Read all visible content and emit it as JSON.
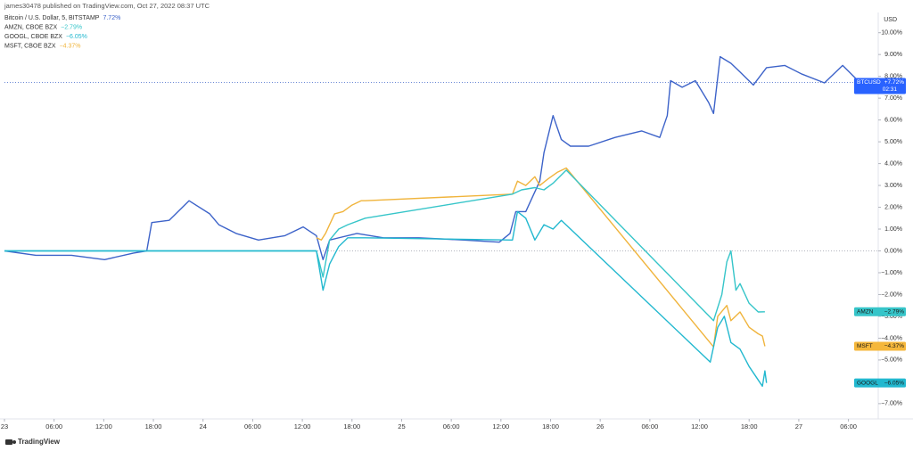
{
  "header": "james30478 published on TradingView.com, Oct 27, 2022 08:37 UTC",
  "footer": "TradingView",
  "chart_data": {
    "type": "line",
    "y_unit": "USD",
    "xlim": [
      0,
      105.6
    ],
    "ylim": [
      -7.7,
      10.6
    ],
    "xticks": [
      {
        "value": 0,
        "label": "23"
      },
      {
        "value": 6,
        "label": "06:00"
      },
      {
        "value": 12,
        "label": "12:00"
      },
      {
        "value": 18,
        "label": "18:00"
      },
      {
        "value": 24,
        "label": "24"
      },
      {
        "value": 30,
        "label": "06:00"
      },
      {
        "value": 36,
        "label": "12:00"
      },
      {
        "value": 42,
        "label": "18:00"
      },
      {
        "value": 48,
        "label": "25"
      },
      {
        "value": 54,
        "label": "06:00"
      },
      {
        "value": 60,
        "label": "12:00"
      },
      {
        "value": 66,
        "label": "18:00"
      },
      {
        "value": 72,
        "label": "26"
      },
      {
        "value": 78,
        "label": "06:00"
      },
      {
        "value": 84,
        "label": "12:00"
      },
      {
        "value": 90,
        "label": "18:00"
      },
      {
        "value": 96,
        "label": "27"
      },
      {
        "value": 102,
        "label": "06:00"
      }
    ],
    "yticks": [
      {
        "value": 10,
        "label": "10.00%"
      },
      {
        "value": 9,
        "label": "9.00%"
      },
      {
        "value": 8,
        "label": "8.00%"
      },
      {
        "value": 7,
        "label": "7.00%"
      },
      {
        "value": 6,
        "label": "6.00%"
      },
      {
        "value": 5,
        "label": "5.00%"
      },
      {
        "value": 4,
        "label": "4.00%"
      },
      {
        "value": 3,
        "label": "3.00%"
      },
      {
        "value": 2,
        "label": "2.00%"
      },
      {
        "value": 1,
        "label": "1.00%"
      },
      {
        "value": 0,
        "label": "0.00%"
      },
      {
        "value": -1,
        "label": "−1.00%"
      },
      {
        "value": -2,
        "label": "−2.00%"
      },
      {
        "value": -3,
        "label": "−3.00%"
      },
      {
        "value": -4,
        "label": "−4.00%"
      },
      {
        "value": -5,
        "label": "−5.00%"
      },
      {
        "value": -6,
        "label": "−6.00%"
      },
      {
        "value": -7,
        "label": "−7.00%"
      }
    ],
    "series": [
      {
        "name": "Bitcoin / U.S. Dollar, 5, BITSTAMP",
        "color": "#3d63c9",
        "legend_value": {
          "value": 7.72,
          "label": "7.72%"
        },
        "badge": "BTCUSD",
        "badge_value": {
          "value": 7.72,
          "label": "+7.72%"
        },
        "badge_time": "02:31",
        "badge_color": "#2962ff",
        "x": [
          0,
          3.8,
          8.1,
          12.1,
          15.6,
          17.2,
          17.8,
          19.9,
          22.3,
          24.8,
          25.9,
          28.0,
          30.7,
          33.9,
          36.1,
          37.7,
          38.5,
          39.3,
          42.6,
          45.8,
          50.1,
          55.5,
          59.8,
          61.1,
          61.8,
          63.0,
          64.7,
          65.2,
          66.3,
          67.3,
          68.4,
          70.6,
          73.8,
          77.0,
          79.2,
          80.1,
          80.5,
          81.9,
          83.5,
          85.1,
          85.7,
          86.5,
          87.8,
          88.9,
          90.5,
          92.1,
          94.3,
          96.4,
          99.1,
          101.3,
          102.9,
          104.8
        ],
        "values": [
          0,
          -0.2,
          -0.2,
          -0.4,
          -0.1,
          0,
          1.3,
          1.4,
          2.3,
          1.7,
          1.2,
          0.8,
          0.5,
          0.7,
          1.1,
          0.7,
          -0.4,
          0.5,
          0.8,
          0.6,
          0.6,
          0.5,
          0.4,
          0.8,
          1.8,
          1.8,
          3.2,
          4.5,
          6.2,
          5.1,
          4.8,
          4.8,
          5.2,
          5.5,
          5.2,
          6.2,
          7.8,
          7.5,
          7.8,
          6.8,
          6.3,
          8.9,
          8.6,
          8.2,
          7.6,
          8.4,
          8.5,
          8.1,
          7.7,
          8.5,
          7.9,
          7.72
        ]
      },
      {
        "name": "AMZN, CBOE BZX",
        "color": "#36c5c9",
        "legend_value": {
          "value": -2.79,
          "label": "−2.79%"
        },
        "badge": "AMZN",
        "badge_value": {
          "value": -2.79,
          "label": "−2.79%"
        },
        "badge_color": "#36c5c9",
        "x": [
          0,
          37.7,
          38.5,
          39.3,
          40.4,
          41.5,
          43.6,
          61.4,
          62.5,
          64.1,
          65.2,
          66.3,
          67.9,
          85.7,
          86.7,
          87.3,
          87.8,
          88.4,
          88.9,
          90.0,
          91.1,
          91.9
        ],
        "values": [
          0,
          0,
          -1.2,
          0.5,
          1.0,
          1.2,
          1.5,
          2.6,
          2.8,
          2.9,
          2.8,
          3.1,
          3.7,
          -3.2,
          -2.0,
          -0.5,
          0,
          -1.8,
          -1.5,
          -2.4,
          -2.8,
          -2.79
        ]
      },
      {
        "name": "GOOGL, CBOE BZX",
        "color": "#22b8cf",
        "legend_value": {
          "value": -6.05,
          "label": "−6.05%"
        },
        "badge": "GOOGL",
        "badge_value": {
          "value": -6.05,
          "label": "−6.05%"
        },
        "badge_color": "#22b8cf",
        "x": [
          0,
          37.7,
          38.5,
          39.3,
          40.4,
          41.5,
          43.6,
          61.4,
          62.0,
          63.0,
          64.1,
          65.2,
          66.3,
          67.3,
          85.3,
          86.2,
          87.0,
          87.8,
          88.9,
          90.0,
          91.6,
          91.9,
          92.1
        ],
        "values": [
          0,
          0,
          -1.8,
          -0.6,
          0.2,
          0.6,
          0.6,
          0.5,
          1.8,
          1.5,
          0.5,
          1.2,
          1.0,
          1.4,
          -5.1,
          -3.5,
          -3.0,
          -4.2,
          -4.5,
          -5.3,
          -6.2,
          -5.5,
          -6.05
        ]
      },
      {
        "name": "MSFT, CBOE BZX",
        "color": "#f0b43c",
        "legend_value": {
          "value": -4.37,
          "label": "−4.37%"
        },
        "badge": "MSFT",
        "badge_value": {
          "value": -4.37,
          "label": "−4.37%"
        },
        "badge_color": "#f5b73b",
        "x": [
          37.7,
          38.3,
          38.8,
          39.9,
          40.9,
          42.0,
          43.1,
          43.6,
          61.4,
          62.0,
          63.0,
          64.1,
          64.7,
          65.7,
          66.8,
          67.9,
          85.7,
          86.2,
          87.3,
          87.8,
          88.9,
          90.0,
          91.1,
          91.6,
          91.9
        ],
        "values": [
          0.6,
          0.5,
          0.8,
          1.7,
          1.8,
          2.1,
          2.3,
          2.3,
          2.6,
          3.2,
          3.0,
          3.4,
          3.0,
          3.3,
          3.6,
          3.8,
          -4.4,
          -3.0,
          -2.5,
          -3.2,
          -2.8,
          -3.5,
          -3.8,
          -3.9,
          -4.37
        ]
      }
    ]
  }
}
